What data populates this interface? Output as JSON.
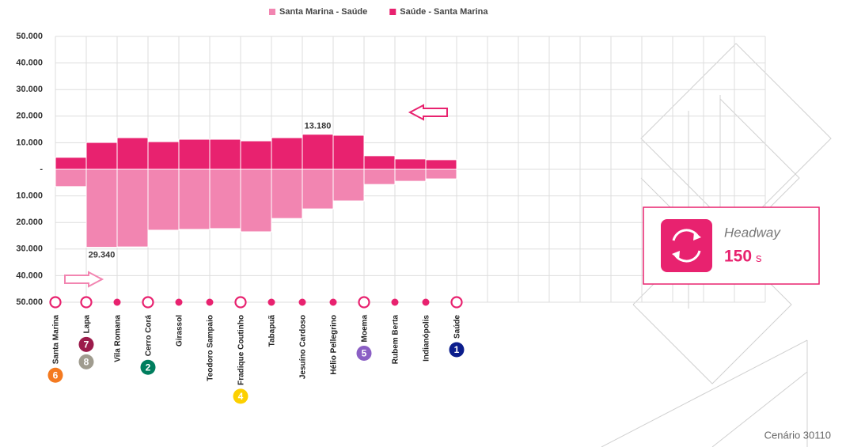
{
  "chart_data": {
    "type": "diverging_bar",
    "legend": {
      "position": "top"
    },
    "series": [
      {
        "name": "Santa Marina - Saúde",
        "color": "#f285b1",
        "values": [
          -6500,
          -29340,
          -29200,
          -22900,
          -22600,
          -22300,
          -23500,
          -18500,
          -14900,
          -11900,
          -5700,
          -4500,
          -3600
        ],
        "value_labels": [
          null,
          "29.340",
          null,
          null,
          null,
          null,
          null,
          null,
          null,
          null,
          null,
          null,
          null
        ]
      },
      {
        "name": "Saúde - Santa Marina",
        "color": "#e8226f",
        "values": [
          4500,
          10100,
          11900,
          10400,
          11300,
          11300,
          10700,
          11900,
          13180,
          12800,
          5100,
          3900,
          3600
        ],
        "value_labels": [
          null,
          null,
          null,
          null,
          null,
          null,
          null,
          null,
          "13.180",
          null,
          null,
          null,
          null
        ]
      }
    ],
    "stations": [
      {
        "name": "Santa Marina",
        "transfer": true,
        "lines": [
          {
            "number": "6",
            "color": "#f47a20"
          }
        ]
      },
      {
        "name": "Lapa",
        "transfer": true,
        "lines": [
          {
            "number": "7",
            "color": "#9c1b4b"
          },
          {
            "number": "8",
            "color": "#a09c8f"
          }
        ]
      },
      {
        "name": "Vila Romana",
        "transfer": false,
        "lines": []
      },
      {
        "name": "Cerro Corá",
        "transfer": true,
        "lines": [
          {
            "number": "2",
            "color": "#007e5e"
          }
        ]
      },
      {
        "name": "Girassol",
        "transfer": false,
        "lines": []
      },
      {
        "name": "Teodoro Sampaio",
        "transfer": false,
        "lines": []
      },
      {
        "name": "Fradique Coutinho",
        "transfer": true,
        "lines": [
          {
            "number": "4",
            "color": "#fcd000"
          }
        ]
      },
      {
        "name": "Tabapuã",
        "transfer": false,
        "lines": []
      },
      {
        "name": "Jesuíno Cardoso",
        "transfer": false,
        "lines": []
      },
      {
        "name": "Hélio Pellegrino",
        "transfer": false,
        "lines": []
      },
      {
        "name": "Moema",
        "transfer": true,
        "lines": [
          {
            "number": "5",
            "color": "#8b5fc4"
          }
        ]
      },
      {
        "name": "Rubem Berta",
        "transfer": false,
        "lines": []
      },
      {
        "name": "Indianópolis",
        "transfer": false,
        "lines": []
      },
      {
        "name": "Saúde",
        "transfer": true,
        "lines": [
          {
            "number": "1",
            "color": "#0b1d8c"
          }
        ]
      }
    ],
    "ylim": [
      -50000,
      50000
    ],
    "yticks": [
      {
        "value": -50000,
        "label": "50.000"
      },
      {
        "value": -40000,
        "label": "40.000"
      },
      {
        "value": -30000,
        "label": "30.000"
      },
      {
        "value": -20000,
        "label": "20.000"
      },
      {
        "value": -10000,
        "label": "10.000"
      },
      {
        "value": 0,
        "label": "-"
      },
      {
        "value": 10000,
        "label": "10.000"
      },
      {
        "value": 20000,
        "label": "20.000"
      },
      {
        "value": 30000,
        "label": "30.000"
      },
      {
        "value": 40000,
        "label": "40.000"
      },
      {
        "value": 50000,
        "label": "50.000"
      }
    ],
    "grid": true
  },
  "headway": {
    "label": "Headway",
    "value": 150,
    "unit": "s"
  },
  "footer": "Cenário 30110"
}
